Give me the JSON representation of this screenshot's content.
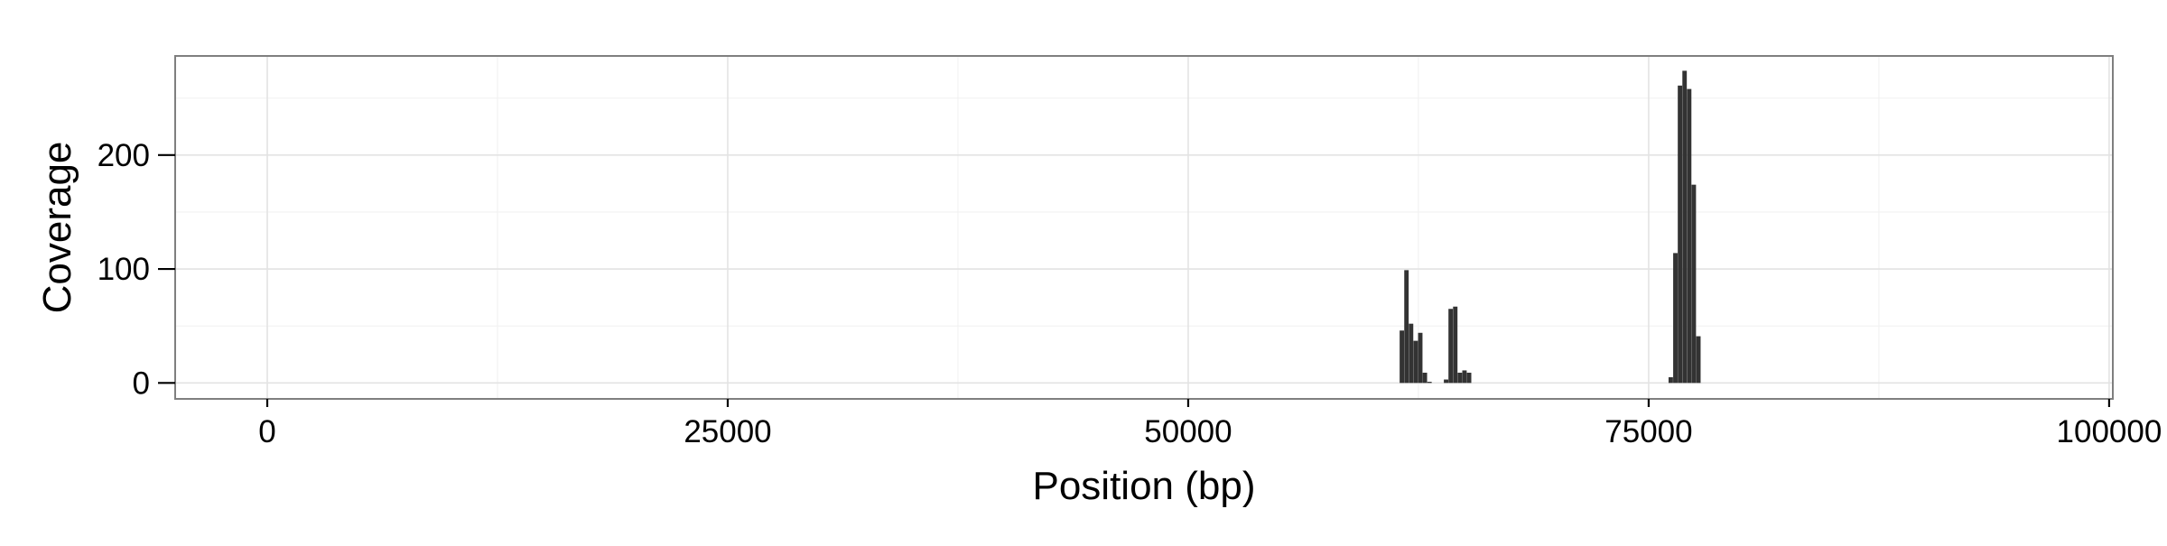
{
  "chart_data": {
    "type": "bar",
    "title": "",
    "xlabel": "Position (bp)",
    "ylabel": "Coverage",
    "xlim": [
      -5000,
      100200
    ],
    "ylim": [
      -14,
      287
    ],
    "x_ticks": [
      0,
      25000,
      50000,
      75000,
      100000
    ],
    "x_minor_ticks": [
      12500,
      37500,
      62500,
      87500
    ],
    "y_ticks": [
      0,
      100,
      200
    ],
    "y_minor_ticks": [
      50,
      150,
      250
    ],
    "x_tick_labels": [
      "0",
      "25000",
      "50000",
      "75000",
      "100000"
    ],
    "y_tick_labels": [
      "0",
      "100",
      "200"
    ],
    "grid": true,
    "legend": "none",
    "bar_width": 240,
    "bar_color": "#333333",
    "bars": [
      {
        "x": 61600,
        "y": 46
      },
      {
        "x": 61850,
        "y": 99
      },
      {
        "x": 62100,
        "y": 52
      },
      {
        "x": 62350,
        "y": 37
      },
      {
        "x": 62600,
        "y": 44
      },
      {
        "x": 62850,
        "y": 9
      },
      {
        "x": 63100,
        "y": 1
      },
      {
        "x": 64000,
        "y": 3
      },
      {
        "x": 64250,
        "y": 65
      },
      {
        "x": 64500,
        "y": 67
      },
      {
        "x": 64750,
        "y": 9
      },
      {
        "x": 65000,
        "y": 11
      },
      {
        "x": 65250,
        "y": 9
      },
      {
        "x": 76200,
        "y": 5
      },
      {
        "x": 76450,
        "y": 114
      },
      {
        "x": 76700,
        "y": 261
      },
      {
        "x": 76950,
        "y": 274
      },
      {
        "x": 77200,
        "y": 258
      },
      {
        "x": 77450,
        "y": 174
      },
      {
        "x": 77700,
        "y": 41
      }
    ]
  }
}
